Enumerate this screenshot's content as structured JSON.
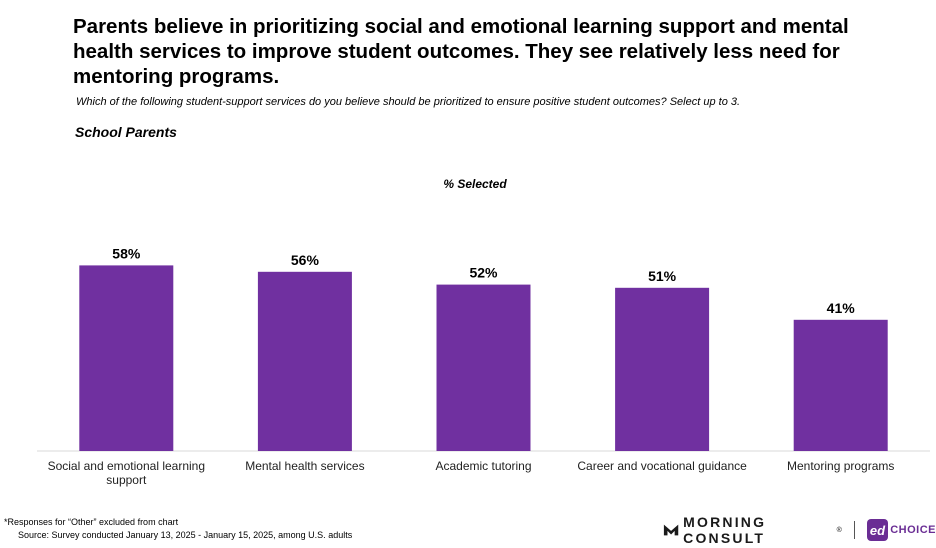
{
  "headline": "Parents believe in prioritizing social and emotional learning support and mental health services to improve student outcomes. They see relatively less need for mentoring programs.",
  "question": "Which of the following student-support services do you believe should be prioritized to ensure positive student outcomes? Select up to 3.",
  "segment": "School Parents",
  "footnote": "*Responses for “Other” excluded from chart",
  "source": "Source: Survey conducted January 13, 2025 - January 15, 2025, among U.S. adults",
  "brand": {
    "morning_consult": "MORNING CONSULT",
    "registered_mark": "®",
    "edchoice_mark": "ed",
    "edchoice_word": "CHOICE"
  },
  "chart_data": {
    "type": "bar",
    "title": "% Selected",
    "categories": [
      [
        "Social and emotional learning",
        "support"
      ],
      [
        "Mental health services"
      ],
      [
        "Academic tutoring"
      ],
      [
        "Career and vocational guidance"
      ],
      [
        "Mentoring programs"
      ]
    ],
    "values": [
      58,
      56,
      52,
      51,
      41
    ],
    "data_labels": [
      "58%",
      "56%",
      "52%",
      "51%",
      "41%"
    ],
    "ylim": [
      0,
      100
    ],
    "grid": false,
    "bar_color": "#7030a0"
  }
}
